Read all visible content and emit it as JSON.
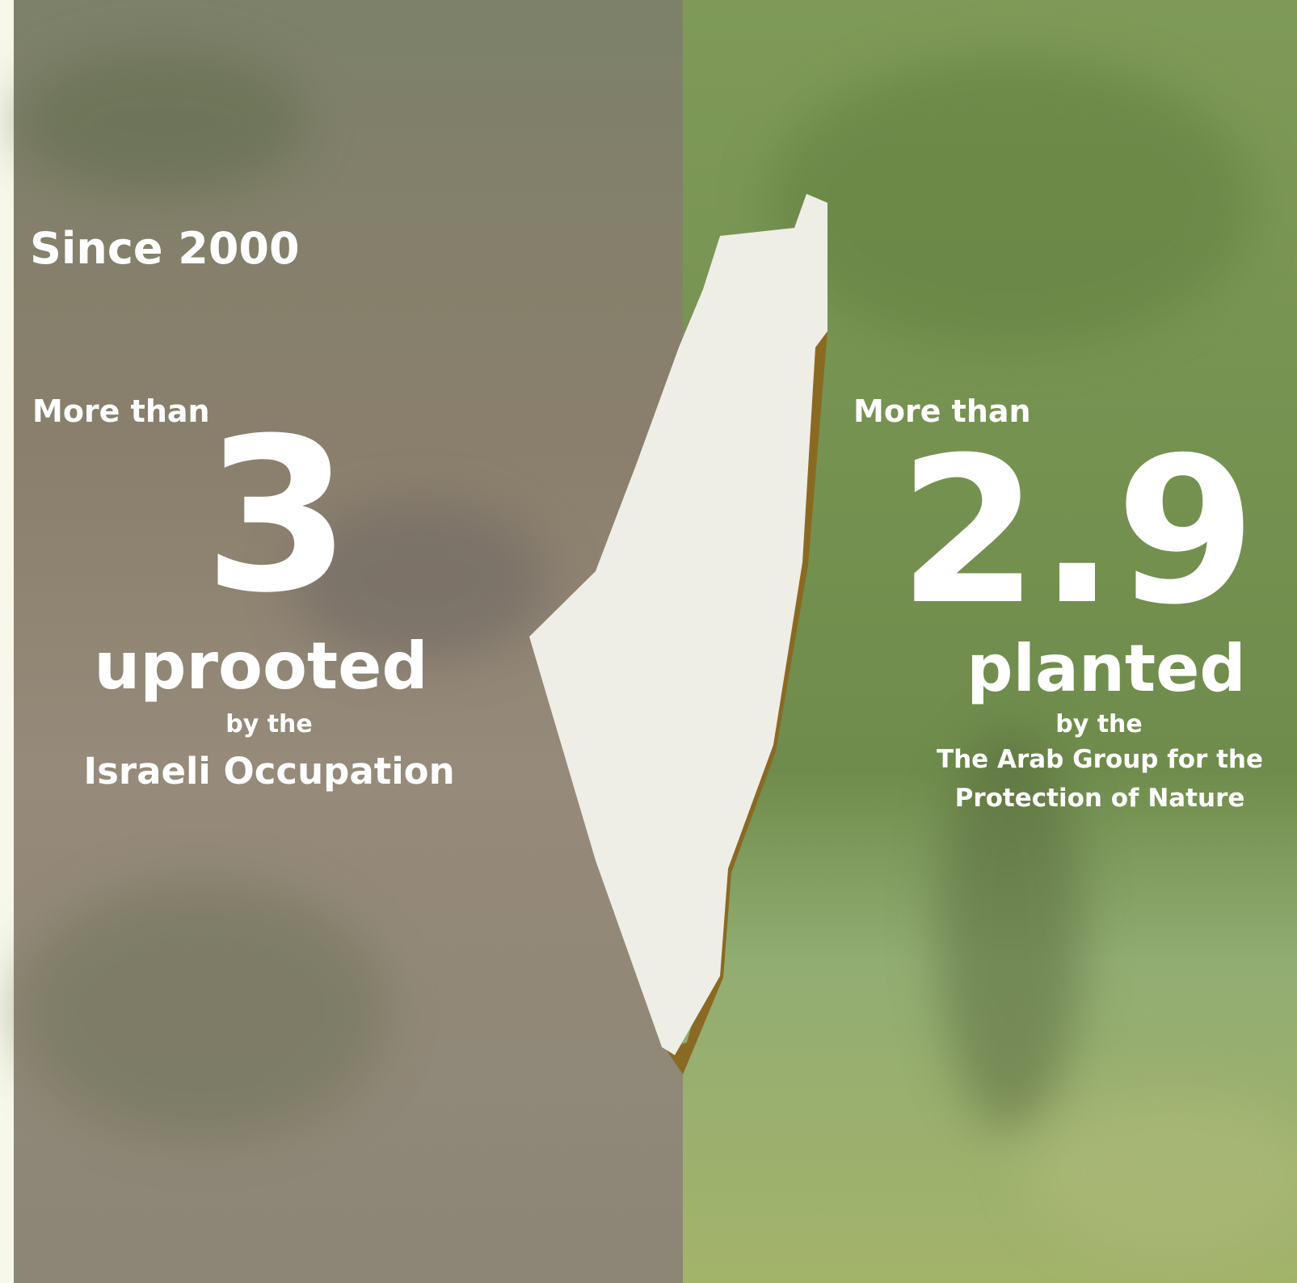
{
  "left": {
    "heading": "Since 2000",
    "prefix": "More than",
    "number": 3,
    "verb": "uprooted",
    "by": "by the",
    "actor": "Israeli Occupation"
  },
  "right": {
    "prefix": "More than",
    "number": 2.9,
    "verb": "planted",
    "by": "by the",
    "actor_lines": [
      "The Arab Group for the",
      "Protection of Nature"
    ]
  }
}
